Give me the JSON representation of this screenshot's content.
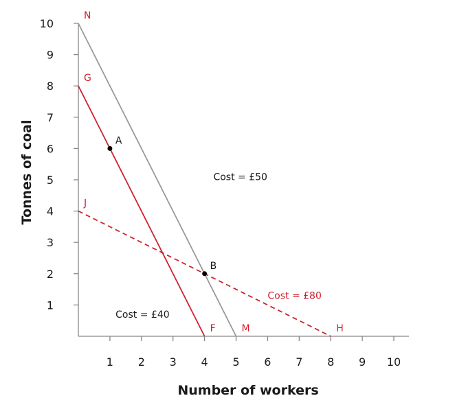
{
  "chart_data": {
    "type": "line",
    "xlabel": "Number of workers",
    "ylabel": "Tonnes of coal",
    "xlim": [
      0,
      10
    ],
    "ylim": [
      0,
      10
    ],
    "x_ticks": [
      "1",
      "2",
      "3",
      "4",
      "5",
      "6",
      "7",
      "8",
      "9",
      "10"
    ],
    "y_ticks": [
      "1",
      "2",
      "3",
      "4",
      "5",
      "6",
      "7",
      "8",
      "9",
      "10"
    ],
    "grid": false,
    "series": [
      {
        "key": "nm",
        "x": [
          0,
          5
        ],
        "y": [
          10,
          0
        ],
        "color": "#999999",
        "dash": false
      },
      {
        "key": "gf",
        "x": [
          0,
          4
        ],
        "y": [
          8,
          0
        ],
        "color": "#d0202e",
        "dash": false
      },
      {
        "key": "jh",
        "x": [
          0,
          8
        ],
        "y": [
          4,
          0
        ],
        "color": "#d0202e",
        "dash": true
      }
    ],
    "point_labels": [
      {
        "text": "N",
        "x": 0,
        "y": 10,
        "color": "#d0202e",
        "pos": "upper-right"
      },
      {
        "text": "G",
        "x": 0,
        "y": 8,
        "color": "#d0202e",
        "pos": "upper-right"
      },
      {
        "text": "J",
        "x": 0,
        "y": 4,
        "color": "#d0202e",
        "pos": "upper-right"
      },
      {
        "text": "F",
        "x": 4,
        "y": 0,
        "color": "#d0202e",
        "pos": "upper-right"
      },
      {
        "text": "M",
        "x": 5,
        "y": 0,
        "color": "#d0202e",
        "pos": "upper-right"
      },
      {
        "text": "H",
        "x": 8,
        "y": 0,
        "color": "#d0202e",
        "pos": "upper-right"
      },
      {
        "text": "A",
        "x": 1,
        "y": 6,
        "color": "#1a1a1a",
        "pos": "upper-right"
      },
      {
        "text": "B",
        "x": 4,
        "y": 2,
        "color": "#1a1a1a",
        "pos": "upper-right"
      }
    ],
    "points": [
      {
        "name": "A",
        "x": 1,
        "y": 6
      },
      {
        "name": "B",
        "x": 4,
        "y": 2
      }
    ],
    "annotations": [
      {
        "text": "Cost = £50",
        "x": 4.28,
        "y": 5.1,
        "color": "#1a1a1a"
      },
      {
        "text": "Cost = £40",
        "x": 1.18,
        "y": 0.7,
        "color": "#1a1a1a"
      },
      {
        "text": "Cost = £80",
        "x": 6.0,
        "y": 1.3,
        "color": "#d0202e"
      }
    ]
  }
}
